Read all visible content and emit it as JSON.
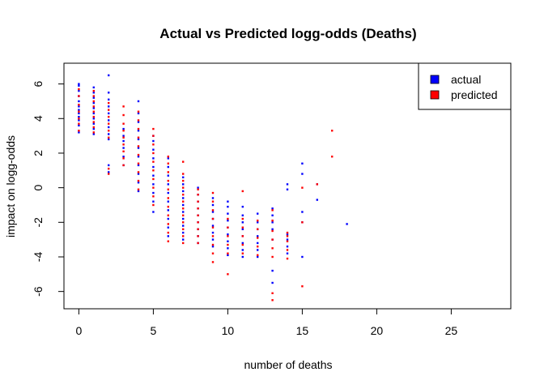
{
  "chart_data": {
    "type": "scatter",
    "title": "Actual vs Predicted logg-odds (Deaths)",
    "xlabel": "number of deaths",
    "ylabel": "impact on logg-odds",
    "xlim": [
      -1,
      29
    ],
    "ylim": [
      -7,
      7.2
    ],
    "xticks": [
      0,
      5,
      10,
      15,
      20,
      25
    ],
    "yticks": [
      -6,
      -4,
      -2,
      0,
      2,
      4,
      6
    ],
    "grid": false,
    "legend_position": "top-right",
    "series": [
      {
        "name": "actual",
        "color": "#0000FF",
        "columns": [
          {
            "x": 0,
            "y": [
              3.2,
              3.6,
              3.9,
              4.1,
              4.3,
              4.5,
              4.7,
              5.0,
              5.3,
              5.6,
              5.9,
              6.0
            ]
          },
          {
            "x": 1,
            "y": [
              3.1,
              3.4,
              3.7,
              4.0,
              4.3,
              4.6,
              4.9,
              5.2,
              5.5,
              5.8
            ]
          },
          {
            "x": 2,
            "y": [
              0.9,
              1.3,
              2.8,
              3.1,
              3.5,
              3.9,
              4.3,
              4.7,
              5.1,
              5.5,
              6.5
            ]
          },
          {
            "x": 3,
            "y": [
              1.3,
              1.8,
              2.3,
              2.7,
              3.0,
              3.4
            ]
          },
          {
            "x": 4,
            "y": [
              -0.2,
              0.3,
              0.8,
              1.3,
              1.8,
              2.3,
              2.8,
              3.3,
              3.8,
              4.3,
              5.0
            ]
          },
          {
            "x": 5,
            "y": [
              -1.4,
              -0.8,
              -0.3,
              0.2,
              0.7,
              1.2,
              1.7,
              2.2,
              2.7,
              3.0
            ]
          },
          {
            "x": 6,
            "y": [
              -2.8,
              -2.3,
              -1.8,
              -1.3,
              -0.8,
              -0.3,
              0.2,
              0.7,
              1.2,
              1.7
            ]
          },
          {
            "x": 7,
            "y": [
              -3.0,
              -2.6,
              -2.2,
              -1.8,
              -1.4,
              -1.0,
              -0.6,
              -0.2,
              0.2,
              0.6
            ]
          },
          {
            "x": 8,
            "y": [
              -3.2,
              -2.8,
              -2.4,
              -2.0,
              -1.6,
              -1.2,
              -0.8,
              -0.4,
              0.0
            ]
          },
          {
            "x": 9,
            "y": [
              -3.4,
              -3.0,
              -2.6,
              -2.2,
              -1.8,
              -1.4,
              -1.0,
              -0.6
            ]
          },
          {
            "x": 10,
            "y": [
              -3.9,
              -3.5,
              -3.1,
              -2.7,
              -2.3,
              -1.9,
              -1.5,
              -1.1,
              -0.8
            ]
          },
          {
            "x": 11,
            "y": [
              -4.0,
              -3.6,
              -3.2,
              -2.8,
              -2.4,
              -2.0,
              -1.6,
              -1.1
            ]
          },
          {
            "x": 12,
            "y": [
              -4.0,
              -3.6,
              -3.2,
              -2.8,
              -2.4,
              -2.0,
              -1.5
            ]
          },
          {
            "x": 13,
            "y": [
              -5.5,
              -4.8,
              -3.0,
              -2.4,
              -2.0,
              -1.6,
              -1.2
            ]
          },
          {
            "x": 14,
            "y": [
              -3.8,
              -3.4,
              -3.0,
              -2.7,
              -0.1,
              0.2
            ]
          },
          {
            "x": 15,
            "y": [
              -4.0,
              -2.0,
              -1.4,
              0.8,
              1.4
            ]
          },
          {
            "x": 16,
            "y": [
              -0.7,
              0.2
            ]
          },
          {
            "x": 18,
            "y": [
              -2.1
            ]
          }
        ]
      },
      {
        "name": "predicted",
        "color": "#FF0000",
        "columns": [
          {
            "x": 0,
            "y": [
              3.3,
              3.7,
              4.0,
              4.4,
              4.8,
              5.3,
              5.7
            ]
          },
          {
            "x": 1,
            "y": [
              3.2,
              3.5,
              3.8,
              4.1,
              4.4,
              4.7,
              5.0,
              5.3,
              5.6
            ]
          },
          {
            "x": 2,
            "y": [
              0.8,
              1.1,
              2.9,
              3.3,
              3.7,
              4.1,
              4.5,
              4.9
            ]
          },
          {
            "x": 3,
            "y": [
              1.3,
              1.7,
              2.1,
              2.5,
              2.9,
              3.3,
              3.7,
              4.2,
              4.7
            ]
          },
          {
            "x": 4,
            "y": [
              -0.1,
              0.4,
              0.9,
              1.4,
              1.9,
              2.4,
              2.9,
              3.4,
              3.9,
              4.4
            ]
          },
          {
            "x": 5,
            "y": [
              -1.0,
              -0.5,
              0.0,
              0.5,
              1.0,
              1.5,
              2.0,
              2.5,
              3.0,
              3.4
            ]
          },
          {
            "x": 6,
            "y": [
              -3.1,
              -2.6,
              -2.1,
              -1.6,
              -1.1,
              -0.6,
              -0.1,
              0.4,
              0.9,
              1.4,
              1.8
            ]
          },
          {
            "x": 7,
            "y": [
              -3.2,
              -2.8,
              -2.4,
              -2.0,
              -1.6,
              -1.2,
              -0.8,
              -0.4,
              0.0,
              0.4,
              0.8,
              1.5
            ]
          },
          {
            "x": 8,
            "y": [
              -3.2,
              -2.8,
              -2.4,
              -2.0,
              -1.6,
              -1.2,
              -0.8,
              -0.4,
              -0.1
            ]
          },
          {
            "x": 9,
            "y": [
              -4.3,
              -3.8,
              -3.3,
              -2.8,
              -2.3,
              -1.8,
              -1.3,
              -0.8,
              -0.3
            ]
          },
          {
            "x": 10,
            "y": [
              -5.0,
              -3.8,
              -3.3,
              -2.8,
              -2.3,
              -1.8
            ]
          },
          {
            "x": 11,
            "y": [
              -3.8,
              -3.3,
              -2.8,
              -2.3,
              -1.8,
              -0.2
            ]
          },
          {
            "x": 12,
            "y": [
              -3.9,
              -3.4,
              -2.9,
              -2.4,
              -1.9
            ]
          },
          {
            "x": 13,
            "y": [
              -6.5,
              -6.1,
              -4.0,
              -3.5,
              -3.0,
              -2.5,
              -1.9,
              -1.3
            ]
          },
          {
            "x": 14,
            "y": [
              -4.1,
              -3.6,
              -3.1,
              -2.8,
              -2.6
            ]
          },
          {
            "x": 15,
            "y": [
              -5.7,
              -2.0,
              0.0
            ]
          },
          {
            "x": 16,
            "y": [
              0.2
            ]
          },
          {
            "x": 17,
            "y": [
              1.8,
              3.3
            ]
          }
        ]
      }
    ]
  }
}
